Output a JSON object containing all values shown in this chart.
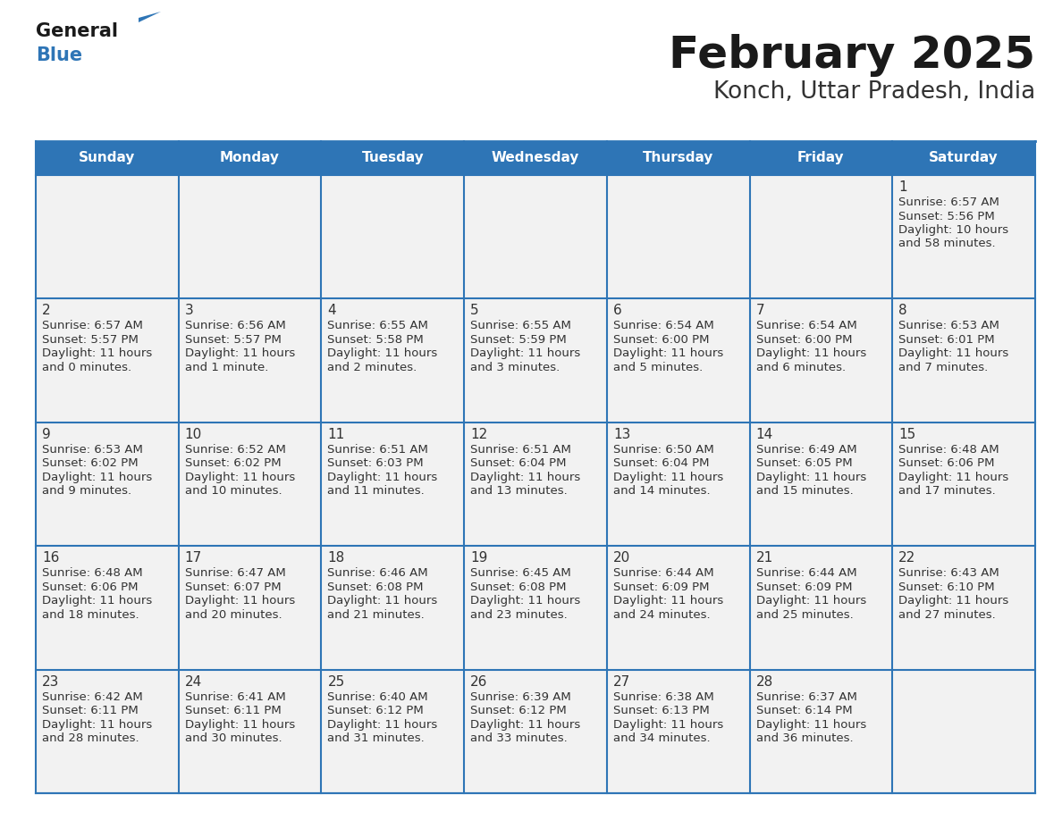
{
  "title": "February 2025",
  "subtitle": "Konch, Uttar Pradesh, India",
  "header_bg": "#2E75B6",
  "header_text_color": "#FFFFFF",
  "cell_bg_filled": "#F2F2F2",
  "cell_bg_empty": "#FFFFFF",
  "cell_border_color": "#2E75B6",
  "day_number_color": "#333333",
  "cell_text_color": "#333333",
  "days_of_week": [
    "Sunday",
    "Monday",
    "Tuesday",
    "Wednesday",
    "Thursday",
    "Friday",
    "Saturday"
  ],
  "calendar_data": [
    [
      null,
      null,
      null,
      null,
      null,
      null,
      {
        "day": 1,
        "sunrise": "6:57 AM",
        "sunset": "5:56 PM",
        "daylight_l1": "10 hours",
        "daylight_l2": "and 58 minutes."
      }
    ],
    [
      {
        "day": 2,
        "sunrise": "6:57 AM",
        "sunset": "5:57 PM",
        "daylight_l1": "11 hours",
        "daylight_l2": "and 0 minutes."
      },
      {
        "day": 3,
        "sunrise": "6:56 AM",
        "sunset": "5:57 PM",
        "daylight_l1": "11 hours",
        "daylight_l2": "and 1 minute."
      },
      {
        "day": 4,
        "sunrise": "6:55 AM",
        "sunset": "5:58 PM",
        "daylight_l1": "11 hours",
        "daylight_l2": "and 2 minutes."
      },
      {
        "day": 5,
        "sunrise": "6:55 AM",
        "sunset": "5:59 PM",
        "daylight_l1": "11 hours",
        "daylight_l2": "and 3 minutes."
      },
      {
        "day": 6,
        "sunrise": "6:54 AM",
        "sunset": "6:00 PM",
        "daylight_l1": "11 hours",
        "daylight_l2": "and 5 minutes."
      },
      {
        "day": 7,
        "sunrise": "6:54 AM",
        "sunset": "6:00 PM",
        "daylight_l1": "11 hours",
        "daylight_l2": "and 6 minutes."
      },
      {
        "day": 8,
        "sunrise": "6:53 AM",
        "sunset": "6:01 PM",
        "daylight_l1": "11 hours",
        "daylight_l2": "and 7 minutes."
      }
    ],
    [
      {
        "day": 9,
        "sunrise": "6:53 AM",
        "sunset": "6:02 PM",
        "daylight_l1": "11 hours",
        "daylight_l2": "and 9 minutes."
      },
      {
        "day": 10,
        "sunrise": "6:52 AM",
        "sunset": "6:02 PM",
        "daylight_l1": "11 hours",
        "daylight_l2": "and 10 minutes."
      },
      {
        "day": 11,
        "sunrise": "6:51 AM",
        "sunset": "6:03 PM",
        "daylight_l1": "11 hours",
        "daylight_l2": "and 11 minutes."
      },
      {
        "day": 12,
        "sunrise": "6:51 AM",
        "sunset": "6:04 PM",
        "daylight_l1": "11 hours",
        "daylight_l2": "and 13 minutes."
      },
      {
        "day": 13,
        "sunrise": "6:50 AM",
        "sunset": "6:04 PM",
        "daylight_l1": "11 hours",
        "daylight_l2": "and 14 minutes."
      },
      {
        "day": 14,
        "sunrise": "6:49 AM",
        "sunset": "6:05 PM",
        "daylight_l1": "11 hours",
        "daylight_l2": "and 15 minutes."
      },
      {
        "day": 15,
        "sunrise": "6:48 AM",
        "sunset": "6:06 PM",
        "daylight_l1": "11 hours",
        "daylight_l2": "and 17 minutes."
      }
    ],
    [
      {
        "day": 16,
        "sunrise": "6:48 AM",
        "sunset": "6:06 PM",
        "daylight_l1": "11 hours",
        "daylight_l2": "and 18 minutes."
      },
      {
        "day": 17,
        "sunrise": "6:47 AM",
        "sunset": "6:07 PM",
        "daylight_l1": "11 hours",
        "daylight_l2": "and 20 minutes."
      },
      {
        "day": 18,
        "sunrise": "6:46 AM",
        "sunset": "6:08 PM",
        "daylight_l1": "11 hours",
        "daylight_l2": "and 21 minutes."
      },
      {
        "day": 19,
        "sunrise": "6:45 AM",
        "sunset": "6:08 PM",
        "daylight_l1": "11 hours",
        "daylight_l2": "and 23 minutes."
      },
      {
        "day": 20,
        "sunrise": "6:44 AM",
        "sunset": "6:09 PM",
        "daylight_l1": "11 hours",
        "daylight_l2": "and 24 minutes."
      },
      {
        "day": 21,
        "sunrise": "6:44 AM",
        "sunset": "6:09 PM",
        "daylight_l1": "11 hours",
        "daylight_l2": "and 25 minutes."
      },
      {
        "day": 22,
        "sunrise": "6:43 AM",
        "sunset": "6:10 PM",
        "daylight_l1": "11 hours",
        "daylight_l2": "and 27 minutes."
      }
    ],
    [
      {
        "day": 23,
        "sunrise": "6:42 AM",
        "sunset": "6:11 PM",
        "daylight_l1": "11 hours",
        "daylight_l2": "and 28 minutes."
      },
      {
        "day": 24,
        "sunrise": "6:41 AM",
        "sunset": "6:11 PM",
        "daylight_l1": "11 hours",
        "daylight_l2": "and 30 minutes."
      },
      {
        "day": 25,
        "sunrise": "6:40 AM",
        "sunset": "6:12 PM",
        "daylight_l1": "11 hours",
        "daylight_l2": "and 31 minutes."
      },
      {
        "day": 26,
        "sunrise": "6:39 AM",
        "sunset": "6:12 PM",
        "daylight_l1": "11 hours",
        "daylight_l2": "and 33 minutes."
      },
      {
        "day": 27,
        "sunrise": "6:38 AM",
        "sunset": "6:13 PM",
        "daylight_l1": "11 hours",
        "daylight_l2": "and 34 minutes."
      },
      {
        "day": 28,
        "sunrise": "6:37 AM",
        "sunset": "6:14 PM",
        "daylight_l1": "11 hours",
        "daylight_l2": "and 36 minutes."
      },
      null
    ]
  ]
}
